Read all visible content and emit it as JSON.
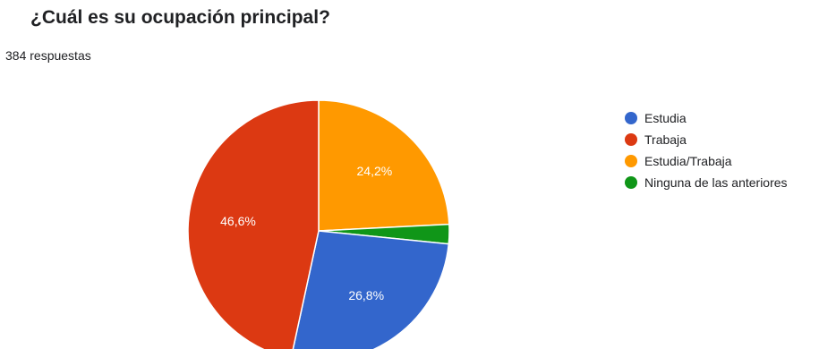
{
  "header": {
    "title": "¿Cuál es su ocupación principal?",
    "response_count": "384 respuestas"
  },
  "chart_data": {
    "type": "pie",
    "title": "¿Cuál es su ocupación principal?",
    "subtitle": "384 respuestas",
    "legend_position": "right",
    "start_angle": "12 o'clock, clockwise",
    "slices": [
      {
        "label": "Estudia/Trabaja",
        "value": 24.2,
        "display": "24,2%",
        "color": "#ff9900"
      },
      {
        "label": "Ninguna de las anteriores",
        "value": 2.4,
        "display": "",
        "color": "#109618"
      },
      {
        "label": "Estudia",
        "value": 26.8,
        "display": "26,8%",
        "color": "#3366cc"
      },
      {
        "label": "Trabaja",
        "value": 46.6,
        "display": "46,6%",
        "color": "#dc3912"
      }
    ],
    "legend": [
      {
        "label": "Estudia",
        "color": "#3366cc"
      },
      {
        "label": "Trabaja",
        "color": "#dc3912"
      },
      {
        "label": "Estudia/Trabaja",
        "color": "#ff9900"
      },
      {
        "label": "Ninguna de las anteriores",
        "color": "#109618"
      }
    ]
  }
}
